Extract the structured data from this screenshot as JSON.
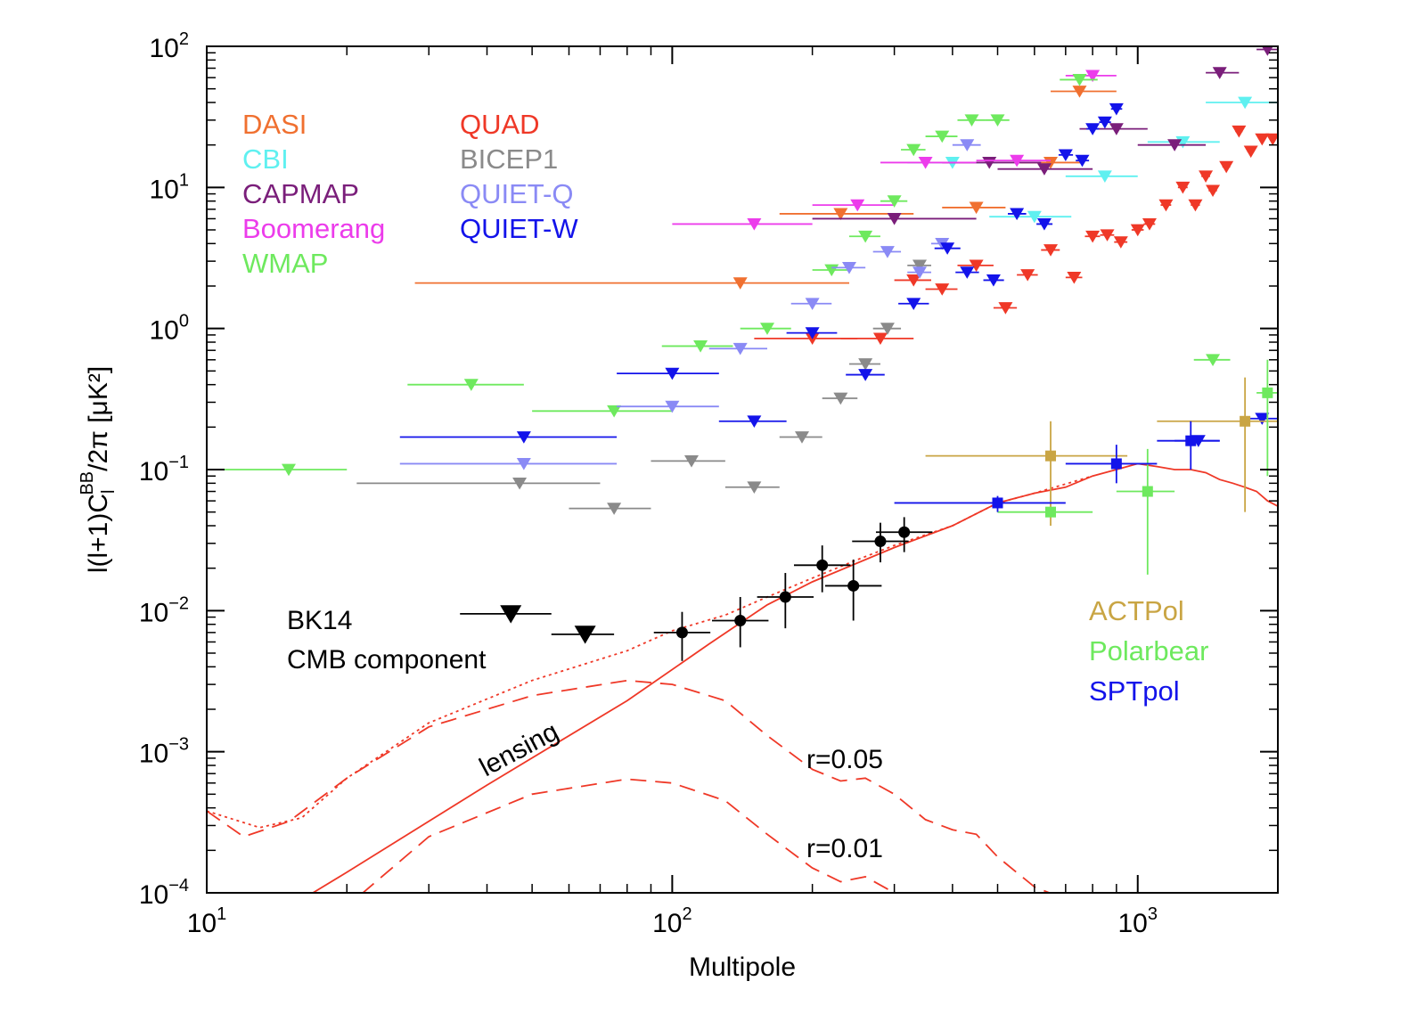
{
  "chart_data": {
    "type": "scatter",
    "title": "",
    "xlabel": "Multipole",
    "ylabel": {
      "main": "l(l+1)C",
      "sub": "l",
      "sup": "BB",
      "tail": "/2π [μK²]"
    },
    "xscale": "log",
    "yscale": "log",
    "xlim": [
      10,
      2000
    ],
    "ylim": [
      0.0001,
      100
    ],
    "x_ticks": [
      {
        "base": "10",
        "exp": "1",
        "value": 10
      },
      {
        "base": "10",
        "exp": "2",
        "value": 100
      },
      {
        "base": "10",
        "exp": "3",
        "value": 1000
      }
    ],
    "y_ticks": [
      {
        "base": "10",
        "exp": "−4",
        "value": 0.0001
      },
      {
        "base": "10",
        "exp": "−3",
        "value": 0.001
      },
      {
        "base": "10",
        "exp": "−2",
        "value": 0.01
      },
      {
        "base": "10",
        "exp": "−1",
        "value": 0.1
      },
      {
        "base": "10",
        "exp": "0",
        "value": 1
      },
      {
        "base": "10",
        "exp": "1",
        "value": 10
      },
      {
        "base": "10",
        "exp": "2",
        "value": 100
      }
    ],
    "grid": false,
    "legend_placement": "top-left",
    "legend_columns": [
      [
        "DASI",
        "CBI",
        "CAPMAP",
        "Boomerang",
        "WMAP"
      ],
      [
        "QUAD",
        "BICEP1",
        "QUIET-Q",
        "QUIET-W"
      ]
    ],
    "legend_bottom_right": [
      "ACTPol",
      "Polarbear",
      "SPTpol"
    ],
    "annotations": {
      "bk14_line1": "BK14",
      "bk14_line2": "CMB component",
      "lensing": "lensing",
      "r005": "r=0.05",
      "r001": "r=0.01"
    },
    "series": [
      {
        "name": "DASI",
        "color": "#f07030",
        "marker": "triangle-down",
        "points": [
          [
            140,
            2.1,
            28,
            240
          ],
          [
            230,
            6.5,
            170,
            330
          ],
          [
            450,
            7.2,
            380,
            520
          ],
          [
            650,
            15,
            560,
            760
          ],
          [
            750,
            48,
            650,
            900
          ]
        ]
      },
      {
        "name": "CBI",
        "color": "#5ff0f0",
        "marker": "triangle-down",
        "points": [
          [
            400,
            15,
            320,
            500
          ],
          [
            600,
            6.2,
            480,
            720
          ],
          [
            850,
            12,
            700,
            1000
          ],
          [
            1250,
            21,
            1050,
            1500
          ],
          [
            1700,
            40,
            1400,
            2000
          ]
        ]
      },
      {
        "name": "CAPMAP",
        "color": "#7a1e7a",
        "marker": "triangle-down",
        "points": [
          [
            300,
            6,
            200,
            450
          ],
          [
            480,
            15,
            380,
            620
          ],
          [
            630,
            13.5,
            500,
            800
          ],
          [
            900,
            26,
            750,
            1050
          ],
          [
            1200,
            20,
            1000,
            1400
          ],
          [
            1500,
            65,
            1400,
            1650
          ],
          [
            1900,
            95,
            1800,
            2000
          ]
        ]
      },
      {
        "name": "Boomerang",
        "color": "#ec3ceb",
        "marker": "triangle-down",
        "points": [
          [
            150,
            5.5,
            100,
            200
          ],
          [
            250,
            7.5,
            200,
            300
          ],
          [
            350,
            15,
            280,
            450
          ],
          [
            550,
            15.5,
            450,
            650
          ],
          [
            800,
            62,
            700,
            900
          ]
        ]
      },
      {
        "name": "WMAP",
        "color": "#6ee95e",
        "marker": "triangle-down",
        "points": [
          [
            15,
            0.1,
            10,
            20
          ],
          [
            37,
            0.4,
            27,
            48
          ],
          [
            75,
            0.26,
            50,
            100
          ],
          [
            115,
            0.75,
            95,
            135
          ],
          [
            160,
            1,
            140,
            180
          ],
          [
            220,
            2.6,
            200,
            240
          ],
          [
            260,
            4.5,
            240,
            280
          ],
          [
            300,
            8,
            280,
            320
          ],
          [
            330,
            18.5,
            310,
            350
          ],
          [
            380,
            23,
            350,
            410
          ],
          [
            440,
            30,
            410,
            470
          ],
          [
            500,
            30,
            470,
            530
          ],
          [
            750,
            58,
            680,
            820
          ],
          [
            1450,
            0.6,
            1320,
            1580
          ]
        ]
      },
      {
        "name": "QUAD",
        "color": "#ef3827",
        "marker": "triangle-down",
        "points": [
          [
            200,
            0.85,
            150,
            250
          ],
          [
            280,
            0.85,
            230,
            330
          ],
          [
            330,
            2.2,
            300,
            360
          ],
          [
            380,
            1.9,
            350,
            410
          ],
          [
            450,
            2.8,
            410,
            490
          ],
          [
            520,
            1.4,
            490,
            550
          ],
          [
            580,
            2.4,
            550,
            610
          ],
          [
            650,
            3.6,
            620,
            680
          ],
          [
            730,
            2.3,
            700,
            760
          ],
          [
            800,
            4.5,
            770,
            830
          ],
          [
            860,
            4.6,
            830,
            890
          ],
          [
            920,
            4.1,
            890,
            950
          ],
          [
            1000,
            5,
            970,
            1030
          ],
          [
            1060,
            5.5,
            1030,
            1090
          ],
          [
            1150,
            7.5,
            1120,
            1180
          ],
          [
            1250,
            10,
            1220,
            1280
          ],
          [
            1330,
            7.5,
            1300,
            1360
          ],
          [
            1400,
            12,
            1370,
            1430
          ],
          [
            1450,
            9.5,
            1420,
            1480
          ],
          [
            1550,
            14,
            1520,
            1580
          ],
          [
            1650,
            25,
            1620,
            1680
          ],
          [
            1750,
            18,
            1720,
            1780
          ],
          [
            1850,
            22,
            1820,
            1880
          ],
          [
            1950,
            22,
            1920,
            1980
          ]
        ]
      },
      {
        "name": "BICEP1",
        "color": "#8a8a8a",
        "marker": "triangle-down",
        "points": [
          [
            47,
            0.08,
            21,
            70
          ],
          [
            75,
            0.053,
            60,
            90
          ],
          [
            110,
            0.115,
            90,
            130
          ],
          [
            150,
            0.075,
            130,
            170
          ],
          [
            190,
            0.17,
            170,
            210
          ],
          [
            230,
            0.32,
            210,
            250
          ],
          [
            260,
            0.56,
            240,
            280
          ],
          [
            290,
            1,
            270,
            310
          ],
          [
            340,
            2.8,
            320,
            360
          ]
        ]
      },
      {
        "name": "QUIET-Q",
        "color": "#8a8af5",
        "marker": "triangle-down",
        "points": [
          [
            48,
            0.11,
            26,
            76
          ],
          [
            100,
            0.28,
            76,
            126
          ],
          [
            140,
            0.72,
            120,
            160
          ],
          [
            200,
            1.5,
            180,
            220
          ],
          [
            240,
            2.7,
            220,
            260
          ],
          [
            290,
            3.5,
            270,
            310
          ],
          [
            340,
            2.5,
            320,
            360
          ],
          [
            380,
            4,
            360,
            400
          ],
          [
            430,
            20,
            400,
            460
          ]
        ]
      },
      {
        "name": "QUIET-W",
        "color": "#1313ea",
        "marker": "triangle-down",
        "points": [
          [
            48,
            0.17,
            26,
            76
          ],
          [
            100,
            0.48,
            76,
            126
          ],
          [
            150,
            0.22,
            126,
            176
          ],
          [
            200,
            0.93,
            176,
            226
          ],
          [
            260,
            0.47,
            236,
            286
          ],
          [
            330,
            1.5,
            306,
            356
          ],
          [
            390,
            3.7,
            366,
            416
          ],
          [
            430,
            2.5,
            406,
            456
          ],
          [
            490,
            2.2,
            466,
            516
          ],
          [
            550,
            6.5,
            526,
            576
          ],
          [
            630,
            5.5,
            606,
            656
          ],
          [
            700,
            17,
            676,
            726
          ],
          [
            760,
            15.5,
            736,
            786
          ],
          [
            800,
            26,
            776,
            826
          ],
          [
            850,
            29,
            826,
            876
          ],
          [
            900,
            36,
            876,
            926
          ],
          [
            1350,
            0.16,
            1200,
            1500
          ],
          [
            1850,
            0.23,
            1700,
            2000
          ]
        ]
      },
      {
        "name": "ACTPol",
        "color": "#c9a544",
        "marker": "square",
        "points": [
          [
            650,
            0.125,
            350,
            950,
            0.04,
            0.22
          ],
          [
            1700,
            0.22,
            1100,
            2000,
            0.05,
            0.45
          ]
        ]
      },
      {
        "name": "Polarbear",
        "color": "#6ee95e",
        "marker": "square",
        "points": [
          [
            650,
            0.05,
            500,
            800,
            0.05,
            0.05
          ],
          [
            1050,
            0.07,
            900,
            1200,
            0.018,
            0.14
          ],
          [
            1900,
            0.35,
            1800,
            2000,
            0.09,
            0.6
          ]
        ]
      },
      {
        "name": "SPTpol",
        "color": "#1313ea",
        "marker": "square",
        "points": [
          [
            500,
            0.058,
            300,
            700,
            0.05,
            0.065
          ],
          [
            900,
            0.11,
            700,
            1100,
            0.08,
            0.15
          ],
          [
            1300,
            0.16,
            1100,
            1500,
            0.1,
            0.22
          ]
        ]
      },
      {
        "name": "BK14 upper limits",
        "color": "#000000",
        "marker": "triangle-down",
        "points": [
          [
            45,
            0.0095,
            35,
            55
          ],
          [
            65,
            0.0068,
            55,
            75
          ]
        ]
      },
      {
        "name": "BK14",
        "color": "#000000",
        "marker": "circle",
        "points": [
          [
            105,
            0.007,
            0.0044,
            0.0098
          ],
          [
            140,
            0.0085,
            0.0055,
            0.0125
          ],
          [
            175,
            0.0125,
            0.0075,
            0.0185
          ],
          [
            210,
            0.021,
            0.0135,
            0.029
          ],
          [
            245,
            0.015,
            0.0085,
            0.023
          ],
          [
            280,
            0.031,
            0.022,
            0.042
          ],
          [
            315,
            0.036,
            0.026,
            0.046
          ]
        ]
      }
    ],
    "curves": {
      "lensing": [
        [
          10,
          3.5e-05
        ],
        [
          20,
          0.00014
        ],
        [
          40,
          0.00058
        ],
        [
          80,
          0.0023
        ],
        [
          120,
          0.0058
        ],
        [
          160,
          0.011
        ],
        [
          200,
          0.016
        ],
        [
          300,
          0.028
        ],
        [
          400,
          0.04
        ],
        [
          500,
          0.058
        ],
        [
          600,
          0.068
        ],
        [
          700,
          0.075
        ],
        [
          800,
          0.09
        ],
        [
          900,
          0.1
        ],
        [
          1000,
          0.11
        ],
        [
          1100,
          0.105
        ],
        [
          1200,
          0.1
        ],
        [
          1300,
          0.1
        ],
        [
          1400,
          0.095
        ],
        [
          1500,
          0.085
        ],
        [
          1600,
          0.08
        ],
        [
          1700,
          0.075
        ],
        [
          1800,
          0.07
        ],
        [
          1900,
          0.06
        ],
        [
          2000,
          0.055
        ]
      ],
      "r005": [
        [
          10,
          0.00038
        ],
        [
          12,
          0.00025
        ],
        [
          15,
          0.00032
        ],
        [
          20,
          0.00065
        ],
        [
          30,
          0.0015
        ],
        [
          50,
          0.0025
        ],
        [
          80,
          0.0032
        ],
        [
          100,
          0.003
        ],
        [
          130,
          0.0023
        ],
        [
          160,
          0.0013
        ],
        [
          200,
          0.00075
        ],
        [
          230,
          0.00062
        ],
        [
          260,
          0.00065
        ],
        [
          300,
          0.0005
        ],
        [
          350,
          0.00033
        ],
        [
          400,
          0.00028
        ],
        [
          450,
          0.00026
        ],
        [
          500,
          0.00018
        ],
        [
          600,
          0.00011
        ],
        [
          700,
          9e-05
        ],
        [
          800,
          7e-05
        ],
        [
          900,
          5e-05
        ]
      ],
      "r001": [
        [
          10,
          2.2e-05
        ],
        [
          12,
          1.8e-05
        ],
        [
          15,
          2.5e-05
        ],
        [
          20,
          8e-05
        ],
        [
          30,
          0.00025
        ],
        [
          50,
          0.0005
        ],
        [
          80,
          0.00064
        ],
        [
          100,
          0.0006
        ],
        [
          130,
          0.00045
        ],
        [
          160,
          0.00026
        ],
        [
          200,
          0.00015
        ],
        [
          230,
          0.00012
        ],
        [
          260,
          0.00013
        ],
        [
          300,
          0.0001
        ],
        [
          350,
          6.6e-05
        ],
        [
          400,
          5.6e-05
        ],
        [
          450,
          5e-05
        ],
        [
          500,
          3.6e-05
        ],
        [
          600,
          2.2e-05
        ]
      ],
      "total": [
        [
          10,
          0.00038
        ],
        [
          13,
          0.00029
        ],
        [
          16,
          0.00034
        ],
        [
          20,
          0.00065
        ],
        [
          30,
          0.0016
        ],
        [
          50,
          0.0032
        ],
        [
          80,
          0.0052
        ],
        [
          100,
          0.0072
        ],
        [
          130,
          0.0093
        ],
        [
          160,
          0.0125
        ],
        [
          200,
          0.017
        ],
        [
          250,
          0.023
        ],
        [
          300,
          0.029
        ],
        [
          400,
          0.04
        ],
        [
          500,
          0.058
        ],
        [
          600,
          0.068
        ],
        [
          800,
          0.09
        ]
      ]
    }
  }
}
